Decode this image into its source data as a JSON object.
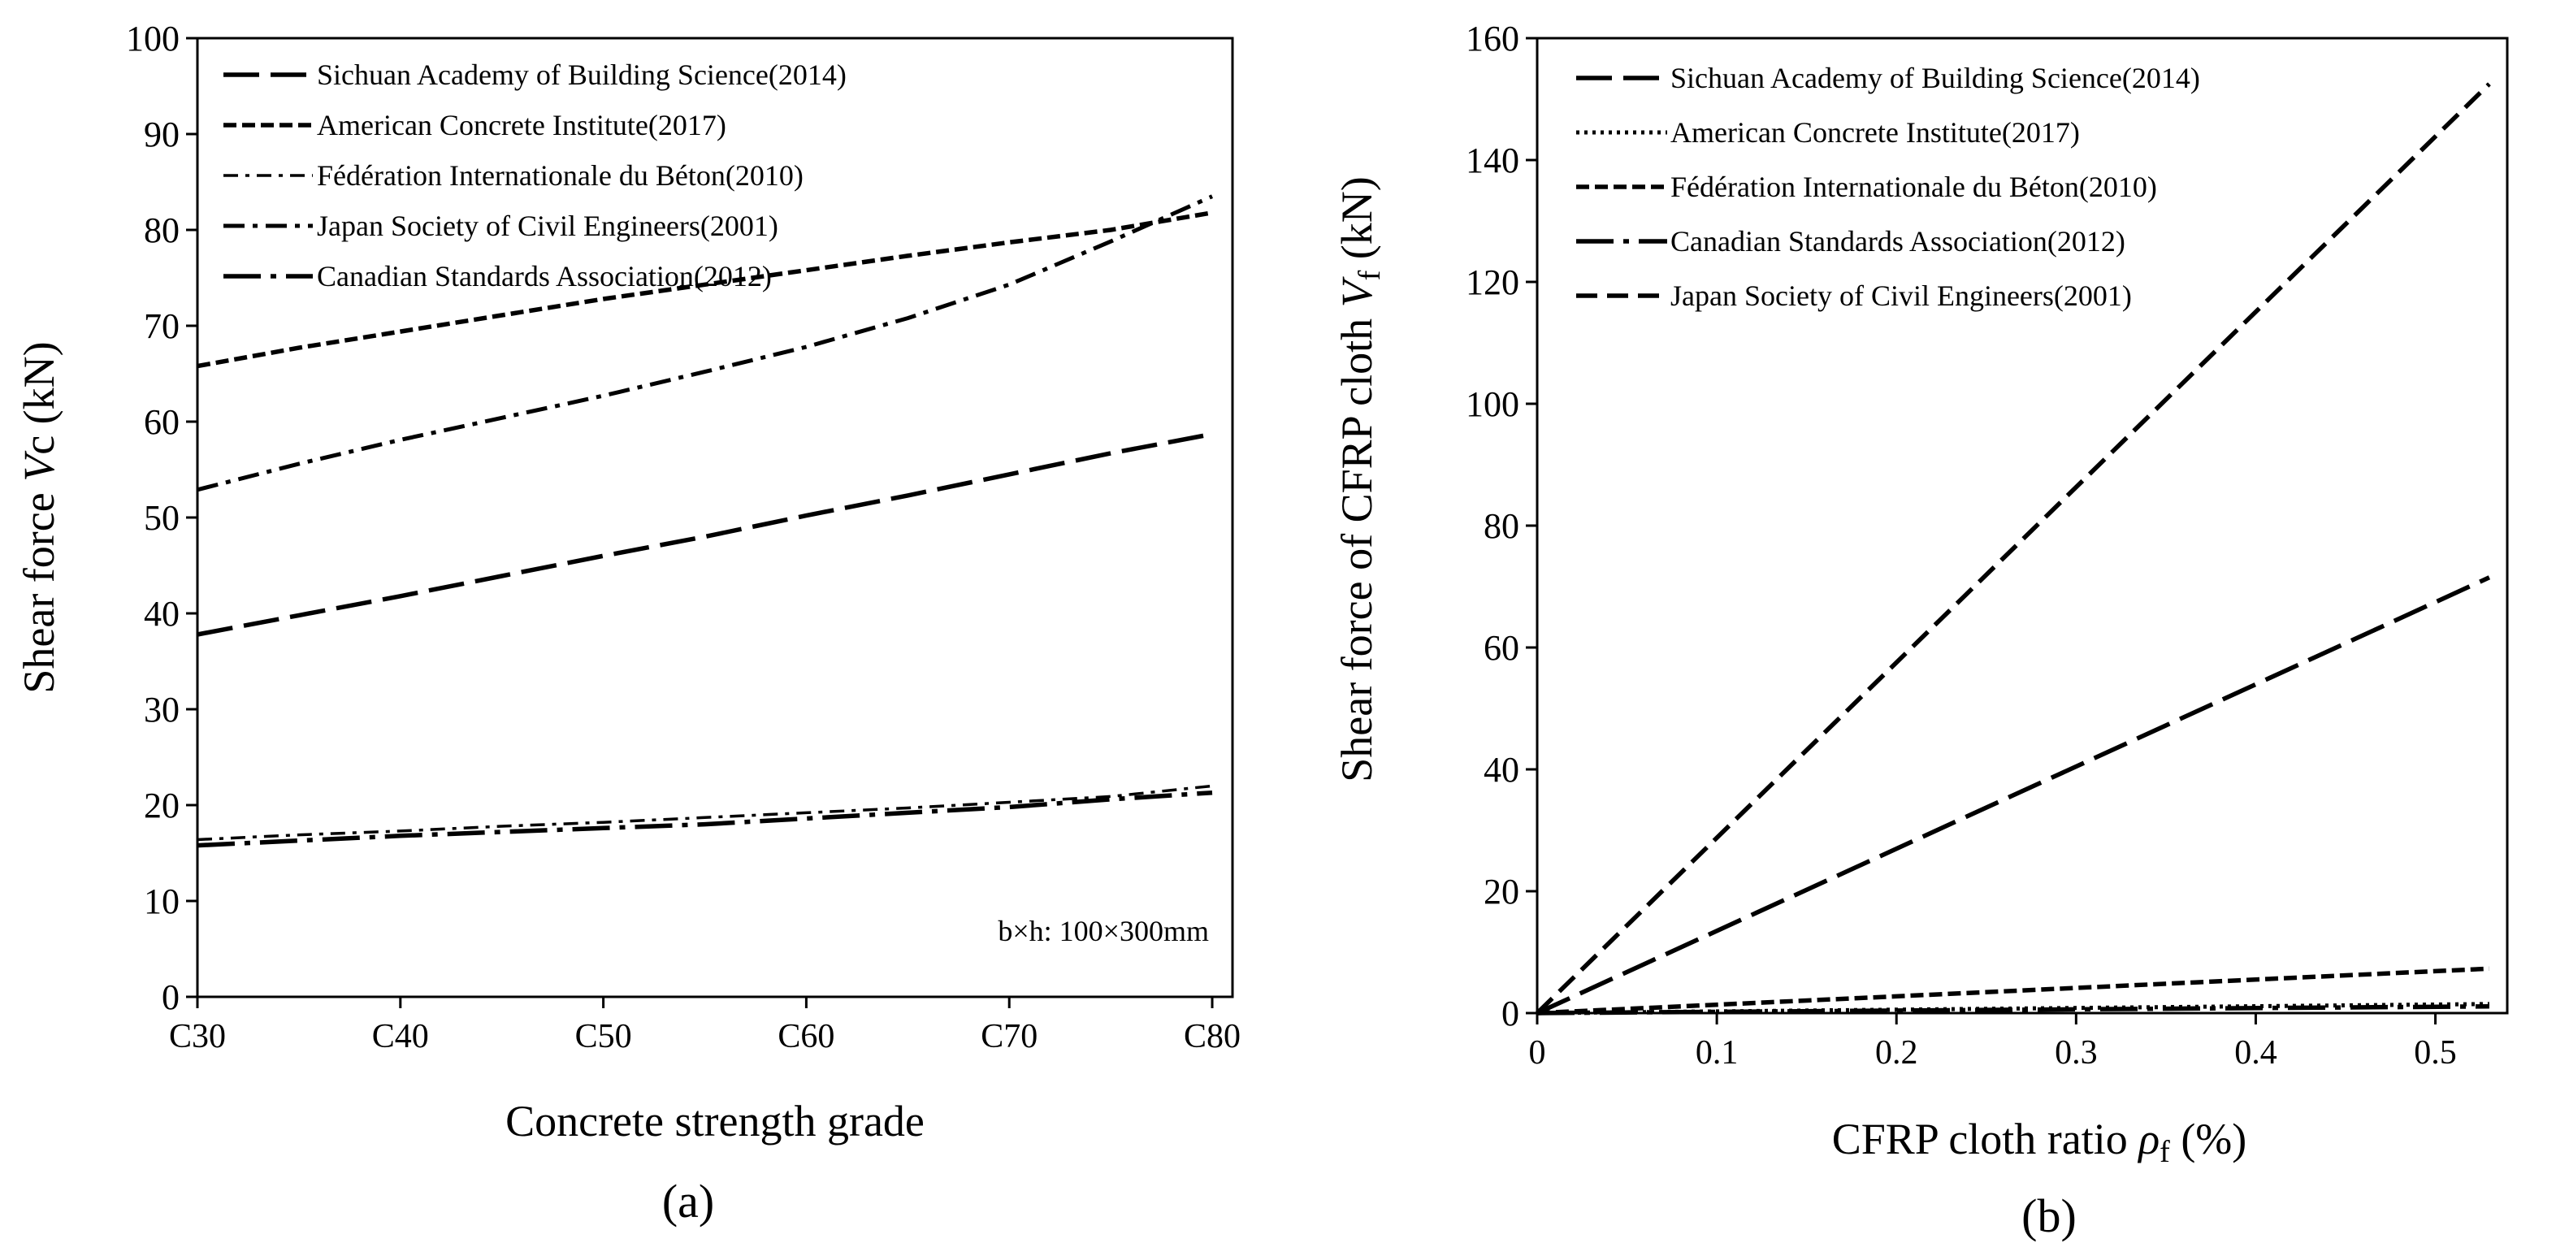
{
  "chart_data": [
    {
      "type": "line",
      "panel_label": "(a)",
      "xlabel": "Concrete strength grade",
      "ylabel": {
        "prefix": "Shear force ",
        "italic": "V",
        "suffix": "c (kN)"
      },
      "categories": [
        "C30",
        "C40",
        "C50",
        "C60",
        "C70",
        "C80"
      ],
      "x": [
        30,
        35,
        40,
        45,
        50,
        55,
        60,
        65,
        70,
        75,
        80
      ],
      "xlim": [
        30,
        81
      ],
      "ylim": [
        0,
        100
      ],
      "yticks": [
        0,
        10,
        20,
        30,
        40,
        50,
        60,
        70,
        80,
        90,
        100
      ],
      "grid": false,
      "legend_position": "top-left",
      "annotation": "b×h: 100×300mm",
      "series": [
        {
          "name": "Sichuan Academy of Building Science(2014)",
          "dash": "long",
          "values": [
            37.8,
            39.8,
            41.8,
            43.9,
            46.0,
            48.0,
            50.2,
            52.3,
            54.5,
            56.7,
            58.7
          ]
        },
        {
          "name": "American Concrete Institute(2017)",
          "dash": "short",
          "values": [
            65.8,
            67.7,
            69.4,
            71.1,
            72.8,
            74.3,
            75.8,
            77.3,
            78.7,
            80.0,
            81.8
          ]
        },
        {
          "name": "Fédération Internationale du Béton(2010)",
          "dash": "dashdot-thin",
          "values": [
            16.4,
            16.9,
            17.3,
            17.8,
            18.2,
            18.7,
            19.2,
            19.7,
            20.3,
            20.9,
            22.0
          ]
        },
        {
          "name": "Japan Society of Civil Engineers(2001)",
          "dash": "dashdot",
          "values": [
            52.9,
            55.6,
            58.1,
            60.4,
            62.7,
            65.2,
            67.8,
            70.8,
            74.3,
            78.8,
            83.5
          ]
        },
        {
          "name": "Canadian Standards Association(2012)",
          "dash": "longdot",
          "values": [
            15.8,
            16.3,
            16.8,
            17.2,
            17.6,
            18.0,
            18.6,
            19.2,
            19.8,
            20.6,
            21.3
          ]
        }
      ]
    },
    {
      "type": "line",
      "panel_label": "(b)",
      "xlabel": {
        "prefix": "CFRP cloth ratio ",
        "italic": "ρ",
        "sub": "f",
        "suffix": " (%)"
      },
      "ylabel": {
        "prefix": "Shear force of CFRP cloth ",
        "italic": "V",
        "sub": "f",
        "suffix": " (kN)"
      },
      "xlim": [
        0,
        0.54
      ],
      "ylim": [
        0,
        160
      ],
      "xticks": [
        0,
        0.1,
        0.2,
        0.3,
        0.4,
        0.5
      ],
      "yticks": [
        0,
        20,
        40,
        60,
        80,
        100,
        120,
        140,
        160
      ],
      "grid": false,
      "legend_position": "top-left",
      "series": [
        {
          "name": "Sichuan Academy of Building Science(2014)",
          "dash": "long",
          "x": [
            0,
            0.53
          ],
          "values": [
            0,
            71.5
          ]
        },
        {
          "name": "American Concrete Institute(2017)",
          "dash": "dot",
          "x": [
            0,
            0.53
          ],
          "values": [
            0,
            1.5
          ]
        },
        {
          "name": "Fédération Internationale du Béton(2010)",
          "dash": "short",
          "x": [
            0,
            0.53
          ],
          "values": [
            0,
            7.3
          ]
        },
        {
          "name": "Canadian Standards Association(2012)",
          "dash": "longdot",
          "x": [
            0,
            0.53
          ],
          "values": [
            0,
            1.1
          ]
        },
        {
          "name": "Japan Society of Civil Engineers(2001)",
          "dash": "medium",
          "x": [
            0,
            0.53
          ],
          "values": [
            0,
            152.5
          ]
        }
      ]
    }
  ]
}
